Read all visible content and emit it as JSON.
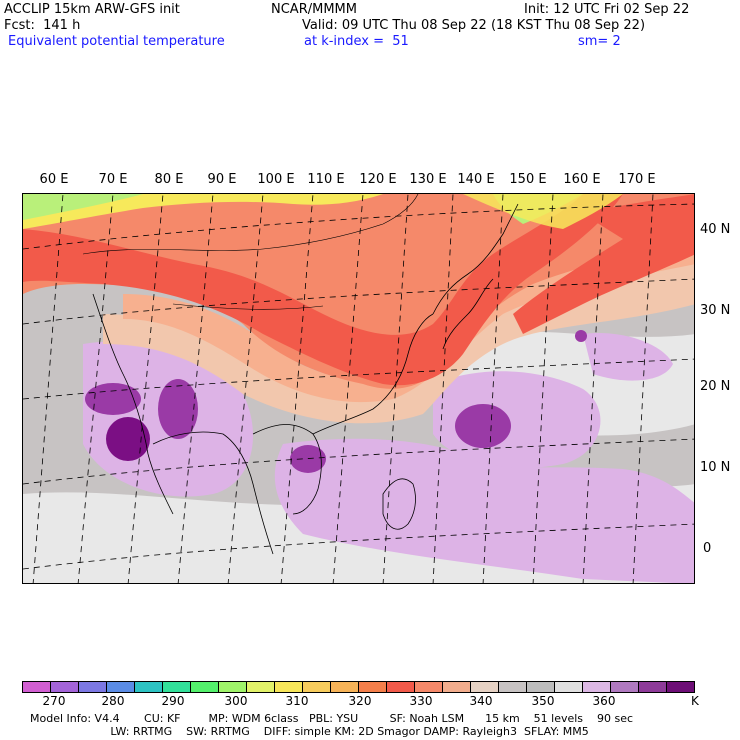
{
  "header": {
    "model": "ACCLIP 15km ARW-GFS init",
    "center": "NCAR/MMMM",
    "init": "Init: 12 UTC Fri 02 Sep 22",
    "fcst": "Fcst:  141 h",
    "valid": "Valid: 09 UTC Thu 08 Sep 22 (18 KST Thu 08 Sep 22)",
    "field": "Equivalent potential temperature",
    "level": "at k-index =  51",
    "smooth": "sm= 2"
  },
  "map": {
    "longitude_labels": [
      "60 E",
      "70 E",
      "80 E",
      "90 E",
      "100 E",
      "110 E",
      "120 E",
      "130 E",
      "140 E",
      "150 E",
      "160 E",
      "170 E"
    ],
    "latitude_labels": [
      "40 N",
      "30 N",
      "20 N",
      "10 N",
      "0"
    ],
    "colors": {
      "warm_red": "#f25a4a",
      "orange": "#f5896a",
      "light_orange": "#f7b08f",
      "peach": "#f2c7ad",
      "yellow": "#f7e95b",
      "green": "#b9f07a",
      "gray": "#c7c3c3",
      "light_gray": "#e8e8e8",
      "lavender": "#ddb3e6",
      "purple": "#9a3aa6",
      "dark_purple": "#7b0f84"
    }
  },
  "colorbar": {
    "colors": [
      "#d25fd2",
      "#a364d8",
      "#7c78e3",
      "#5b8ce5",
      "#2dc3c3",
      "#32e09a",
      "#54f06c",
      "#9ff36a",
      "#e2f26a",
      "#f7e65a",
      "#f7cc5d",
      "#f6b358",
      "#f47f4b",
      "#f25a4a",
      "#f5896a",
      "#f2ad8d",
      "#e6d2c4",
      "#c7c3c3",
      "#bdbdbd",
      "#e0e0e0",
      "#dcb8e4",
      "#b07ac0",
      "#8e3b99",
      "#6d0e76"
    ],
    "ticks": [
      "270",
      "280",
      "290",
      "300",
      "310",
      "320",
      "330",
      "340",
      "350",
      "360"
    ],
    "unit": "K"
  },
  "footer": {
    "line1": "Model Info: V4.4       CU: KF        MP: WDM 6class   PBL: YSU         SF: Noah LSM      15 km    51 levels    90 sec",
    "line2": "                       LW: RRTMG    SW: RRTMG    DIFF: simple KM: 2D Smagor DAMP: Rayleigh3  SFLAY: MM5"
  }
}
